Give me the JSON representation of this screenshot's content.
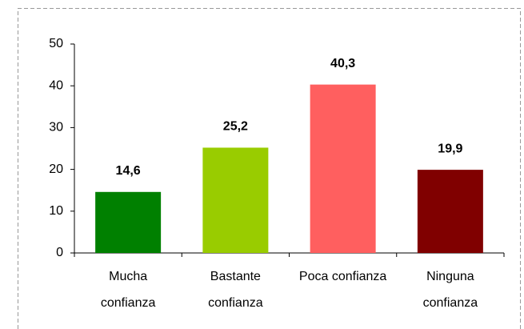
{
  "chart_data": {
    "type": "bar",
    "categories": [
      "Mucha confianza",
      "Bastante confianza",
      "Poca confianza",
      "Ninguna confianza"
    ],
    "values": [
      14.6,
      25.2,
      40.3,
      19.9
    ],
    "value_labels": [
      "14,6",
      "25,2",
      "40,3",
      "19,9"
    ],
    "colors": [
      "#008000",
      "#99cc00",
      "#ff5f5f",
      "#800000"
    ],
    "ylim": [
      0,
      50
    ],
    "yticks": [
      0,
      10,
      20,
      30,
      40,
      50
    ],
    "grid": false
  }
}
